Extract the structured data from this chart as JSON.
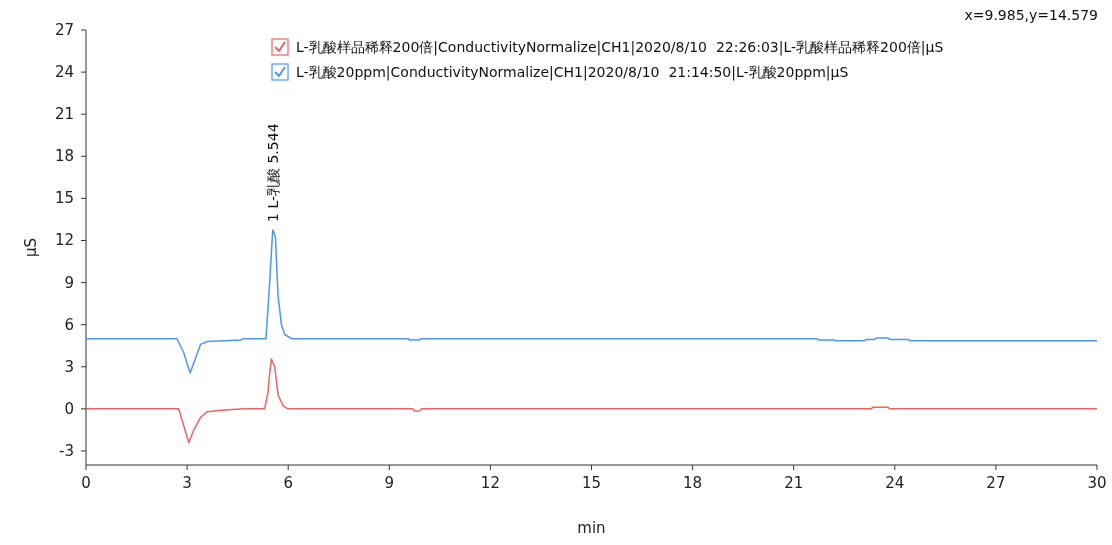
{
  "chart_data": {
    "type": "line",
    "xlabel": "min",
    "ylabel": "µS",
    "xlim": [
      0,
      30
    ],
    "ylim": [
      -4,
      27
    ],
    "xticks": [
      0,
      3,
      6,
      9,
      12,
      15,
      18,
      21,
      24,
      27,
      30
    ],
    "yticks": [
      -3,
      0,
      3,
      6,
      9,
      12,
      15,
      18,
      21,
      24,
      27
    ],
    "grid": false,
    "legend": "top right",
    "marker": "none",
    "line_style": "solid",
    "annotations": [
      "x=9.985,y=14.579",
      {
        "text": "1 L-乳酸 5.544",
        "x": 5.544,
        "y": 12.75
      }
    ],
    "series": [
      {
        "name": "L-乳酸样品稀释200倍|ConductivityNormalize|CH1|2020/8/10  22:26:03|L-乳酸样品稀释200倍|µS",
        "color": "#f06262",
        "x": [
          0,
          2.75,
          2.9,
          3.05,
          3.2,
          3.4,
          3.6,
          4.0,
          4.7,
          5.3,
          5.4,
          5.45,
          5.5,
          5.6,
          5.7,
          5.85,
          6.0,
          9.7,
          9.75,
          9.9,
          9.95,
          23.3,
          23.35,
          23.8,
          23.85,
          30
        ],
        "values": [
          0,
          0,
          -1.2,
          -2.4,
          -1.5,
          -0.6,
          -0.2,
          -0.1,
          0,
          0,
          1.2,
          2.5,
          3.55,
          3.0,
          1.0,
          0.2,
          0,
          0,
          -0.15,
          -0.15,
          0,
          0,
          0.12,
          0.12,
          0,
          0
        ]
      },
      {
        "name": "L-乳酸20ppm|ConductivityNormalize|CH1|2020/8/10  21:14:50|L-乳酸20ppm|µS",
        "color": "#4a98ef",
        "x": [
          0,
          2.7,
          2.9,
          3.09,
          3.25,
          3.4,
          3.6,
          4.6,
          4.65,
          5.34,
          5.45,
          5.54,
          5.62,
          5.7,
          5.8,
          5.9,
          6.1,
          9.58,
          9.6,
          9.9,
          9.92,
          20.2,
          21.7,
          21.75,
          22.2,
          22.25,
          23.1,
          23.15,
          23.4,
          23.45,
          23.8,
          23.85,
          24.4,
          24.45,
          30
        ],
        "values": [
          5.0,
          5.0,
          4.0,
          2.55,
          3.6,
          4.6,
          4.8,
          4.9,
          5.0,
          5.0,
          9.0,
          12.75,
          12.3,
          8.0,
          6.0,
          5.3,
          5.0,
          5.0,
          4.9,
          4.9,
          5.0,
          5.0,
          5.0,
          4.9,
          4.9,
          4.85,
          4.85,
          4.95,
          4.95,
          5.05,
          5.05,
          4.95,
          4.95,
          4.85,
          4.85
        ]
      }
    ]
  }
}
